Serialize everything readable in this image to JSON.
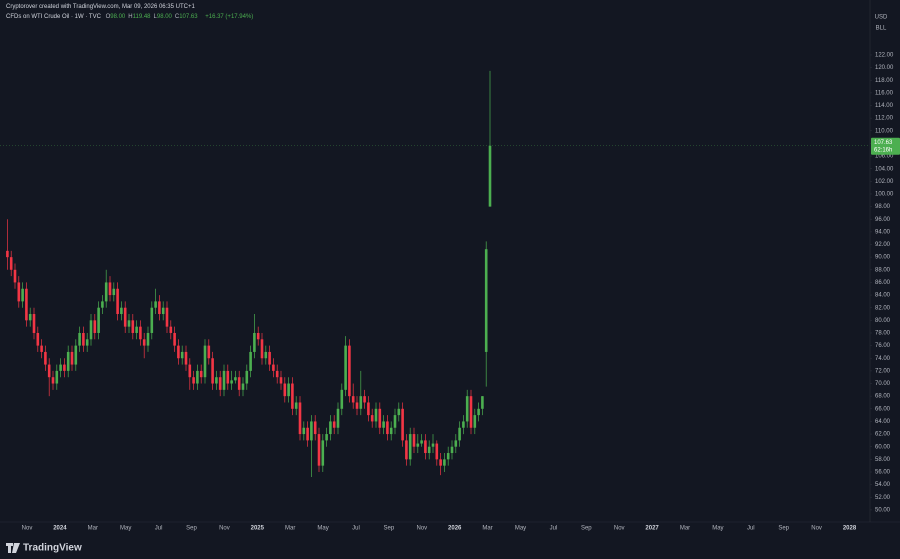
{
  "header": {
    "attribution": "Cryptorover created with TradingView.com, Mar 09, 2026 06:35 UTC+1"
  },
  "chart_data": {
    "type": "candlestick",
    "title": "CFDs on WTI Crude Oil · 1W · TVC",
    "readout": {
      "labels": [
        "O",
        "H",
        "L",
        "C"
      ],
      "value_labels": [
        "98.00",
        "119.48",
        "98.00",
        "107.63"
      ],
      "change": "+16.37 (+17.94%)"
    },
    "currency": "USD",
    "unit": "BLL",
    "last_price_label": "107.63",
    "countdown": "62:16h",
    "up_color": "#4caf50",
    "down_color": "#f23645",
    "grid": false,
    "x_labels": [
      "Nov",
      "2024",
      "Mar",
      "May",
      "Jul",
      "Sep",
      "Nov",
      "2025",
      "Mar",
      "May",
      "Jul",
      "Sep",
      "Nov",
      "2026",
      "Mar",
      "May",
      "Jul",
      "Sep",
      "Nov",
      "2027",
      "Mar",
      "May",
      "Jul",
      "Sep",
      "Nov",
      "2028"
    ],
    "ylim": [
      48.4,
      130.7
    ],
    "yticks": [
      {
        "value": 50,
        "label": "50.00"
      },
      {
        "value": 52,
        "label": "52.00"
      },
      {
        "value": 54,
        "label": "54.00"
      },
      {
        "value": 56,
        "label": "56.00"
      },
      {
        "value": 58,
        "label": "58.00"
      },
      {
        "value": 60,
        "label": "60.00"
      },
      {
        "value": 62,
        "label": "62.00"
      },
      {
        "value": 64,
        "label": "64.00"
      },
      {
        "value": 66,
        "label": "66.00"
      },
      {
        "value": 68,
        "label": "68.00"
      },
      {
        "value": 70,
        "label": "70.00"
      },
      {
        "value": 72,
        "label": "72.00"
      },
      {
        "value": 74,
        "label": "74.00"
      },
      {
        "value": 76,
        "label": "76.00"
      },
      {
        "value": 78,
        "label": "78.00"
      },
      {
        "value": 80,
        "label": "80.00"
      },
      {
        "value": 82,
        "label": "82.00"
      },
      {
        "value": 84,
        "label": "84.00"
      },
      {
        "value": 86,
        "label": "86.00"
      },
      {
        "value": 88,
        "label": "88.00"
      },
      {
        "value": 90,
        "label": "90.00"
      },
      {
        "value": 92,
        "label": "92.00"
      },
      {
        "value": 94,
        "label": "94.00"
      },
      {
        "value": 96,
        "label": "96.00"
      },
      {
        "value": 98,
        "label": "98.00"
      },
      {
        "value": 100,
        "label": "100.00"
      },
      {
        "value": 102,
        "label": "102.00"
      },
      {
        "value": 104,
        "label": "104.00"
      },
      {
        "value": 106,
        "label": "106.00"
      },
      {
        "value": 108,
        "label": "108.00"
      },
      {
        "value": 110,
        "label": "110.00"
      },
      {
        "value": 112,
        "label": "112.00"
      },
      {
        "value": 114,
        "label": "114.00"
      },
      {
        "value": 116,
        "label": "116.00"
      },
      {
        "value": 118,
        "label": "118.00"
      },
      {
        "value": 120,
        "label": "120.00"
      },
      {
        "value": 122,
        "label": "122.00"
      }
    ],
    "open": [
      91,
      90,
      88,
      86,
      83,
      85,
      80,
      81,
      78,
      76,
      75,
      73,
      71,
      70,
      72,
      73,
      72,
      75,
      73,
      76,
      78,
      76,
      77,
      80,
      78,
      82,
      83,
      86,
      84,
      85,
      81,
      82,
      79,
      80,
      78,
      79,
      77,
      76,
      78,
      82,
      83,
      81,
      82,
      79,
      78,
      76,
      74,
      75,
      73,
      71,
      70,
      72,
      71,
      76,
      74,
      70,
      71,
      69,
      72,
      70,
      70.5,
      71,
      69,
      70,
      72,
      75,
      78,
      77,
      74,
      75,
      73,
      72,
      71,
      70,
      68,
      70,
      66,
      67,
      62,
      63,
      61,
      64,
      62,
      57,
      61,
      62,
      64,
      63,
      66,
      69,
      76,
      68,
      67,
      66,
      68,
      67,
      65,
      64,
      66,
      63,
      64,
      62,
      63,
      65,
      66,
      61,
      58,
      62,
      60,
      60.5,
      61,
      59,
      60,
      60.5,
      58,
      57,
      58,
      59,
      60,
      61,
      63,
      64,
      68,
      63,
      65,
      66,
      75,
      98
    ],
    "high": [
      96,
      91,
      89,
      87,
      86,
      86,
      82,
      82,
      79,
      77,
      76,
      74,
      72,
      73,
      74,
      74,
      76,
      76,
      77,
      79,
      79,
      78,
      81,
      81,
      83,
      84,
      88,
      87,
      86,
      86,
      83,
      83,
      81,
      81,
      80,
      80,
      78,
      79,
      83,
      85,
      84,
      83,
      83,
      80,
      79,
      77,
      76,
      76,
      74,
      72,
      73,
      73,
      77,
      77,
      75,
      72,
      72,
      73,
      73,
      72,
      72,
      72,
      71,
      73,
      76,
      81,
      79,
      78,
      76,
      76,
      74,
      73,
      72,
      71,
      71,
      71,
      68,
      68,
      64,
      64,
      65,
      65,
      63,
      62,
      63,
      65,
      65,
      67,
      70,
      77.5,
      77,
      70,
      68,
      72,
      69,
      68,
      66,
      67,
      67,
      65,
      65,
      64,
      66,
      67,
      67,
      62,
      63,
      63,
      62,
      62,
      62,
      61,
      62,
      61,
      59,
      59,
      60,
      61,
      62,
      64,
      65,
      69,
      69,
      66,
      67,
      68,
      92.5,
      119.48
    ],
    "low": [
      88,
      87,
      85,
      82,
      82,
      79,
      79,
      77,
      75,
      74,
      72,
      68,
      69,
      69,
      71,
      71,
      71,
      72,
      72,
      75,
      75,
      75,
      76,
      77,
      77,
      81,
      82,
      83,
      83,
      80,
      80,
      78,
      78,
      77,
      77,
      76,
      74,
      75,
      77,
      81,
      80,
      80,
      78,
      77,
      75,
      73,
      73,
      72,
      69,
      69,
      69,
      70,
      70,
      73,
      69,
      69,
      68,
      68,
      69,
      69,
      70,
      68,
      68,
      69,
      71,
      74,
      76,
      73,
      73,
      72,
      71,
      70,
      69,
      67,
      67,
      65,
      65,
      61,
      61,
      60,
      55.2,
      61,
      56,
      56,
      60,
      61,
      62,
      62,
      65,
      68,
      67,
      66,
      65,
      65,
      66,
      64,
      63,
      63,
      62,
      62,
      61,
      61,
      62,
      64,
      60,
      57,
      57,
      59,
      59,
      60,
      58,
      58,
      59,
      57,
      55.5,
      56,
      57,
      58,
      59,
      60,
      62,
      63,
      62,
      62,
      64,
      65,
      69.5,
      98
    ],
    "close": [
      90,
      88,
      86,
      83,
      85,
      80,
      81,
      78,
      76,
      75,
      73,
      71,
      70,
      72,
      73,
      72,
      75,
      73,
      76,
      78,
      76,
      77,
      80,
      78,
      82,
      83,
      86,
      84,
      85,
      81,
      82,
      79,
      80,
      78,
      79,
      77,
      76,
      78,
      82,
      83,
      81,
      82,
      79,
      78,
      76,
      74,
      75,
      73,
      71,
      70,
      72,
      71,
      76,
      74,
      70,
      71,
      69,
      72,
      70,
      70.5,
      71,
      69,
      70,
      72,
      75,
      78,
      77,
      74,
      75,
      73,
      72,
      71,
      70,
      68,
      70,
      66,
      67,
      62,
      63,
      61,
      64,
      62,
      57,
      61,
      62,
      64,
      63,
      66,
      69,
      76,
      68,
      67,
      66,
      68,
      67,
      65,
      64,
      66,
      63,
      64,
      62,
      63,
      65,
      66,
      61,
      58,
      62,
      60,
      60.5,
      61,
      59,
      60,
      60.5,
      58,
      57,
      58,
      59,
      60,
      61,
      63,
      64,
      68,
      63,
      65,
      66,
      68,
      91.26,
      107.63
    ]
  },
  "footer": {
    "logo": "TradingView"
  }
}
